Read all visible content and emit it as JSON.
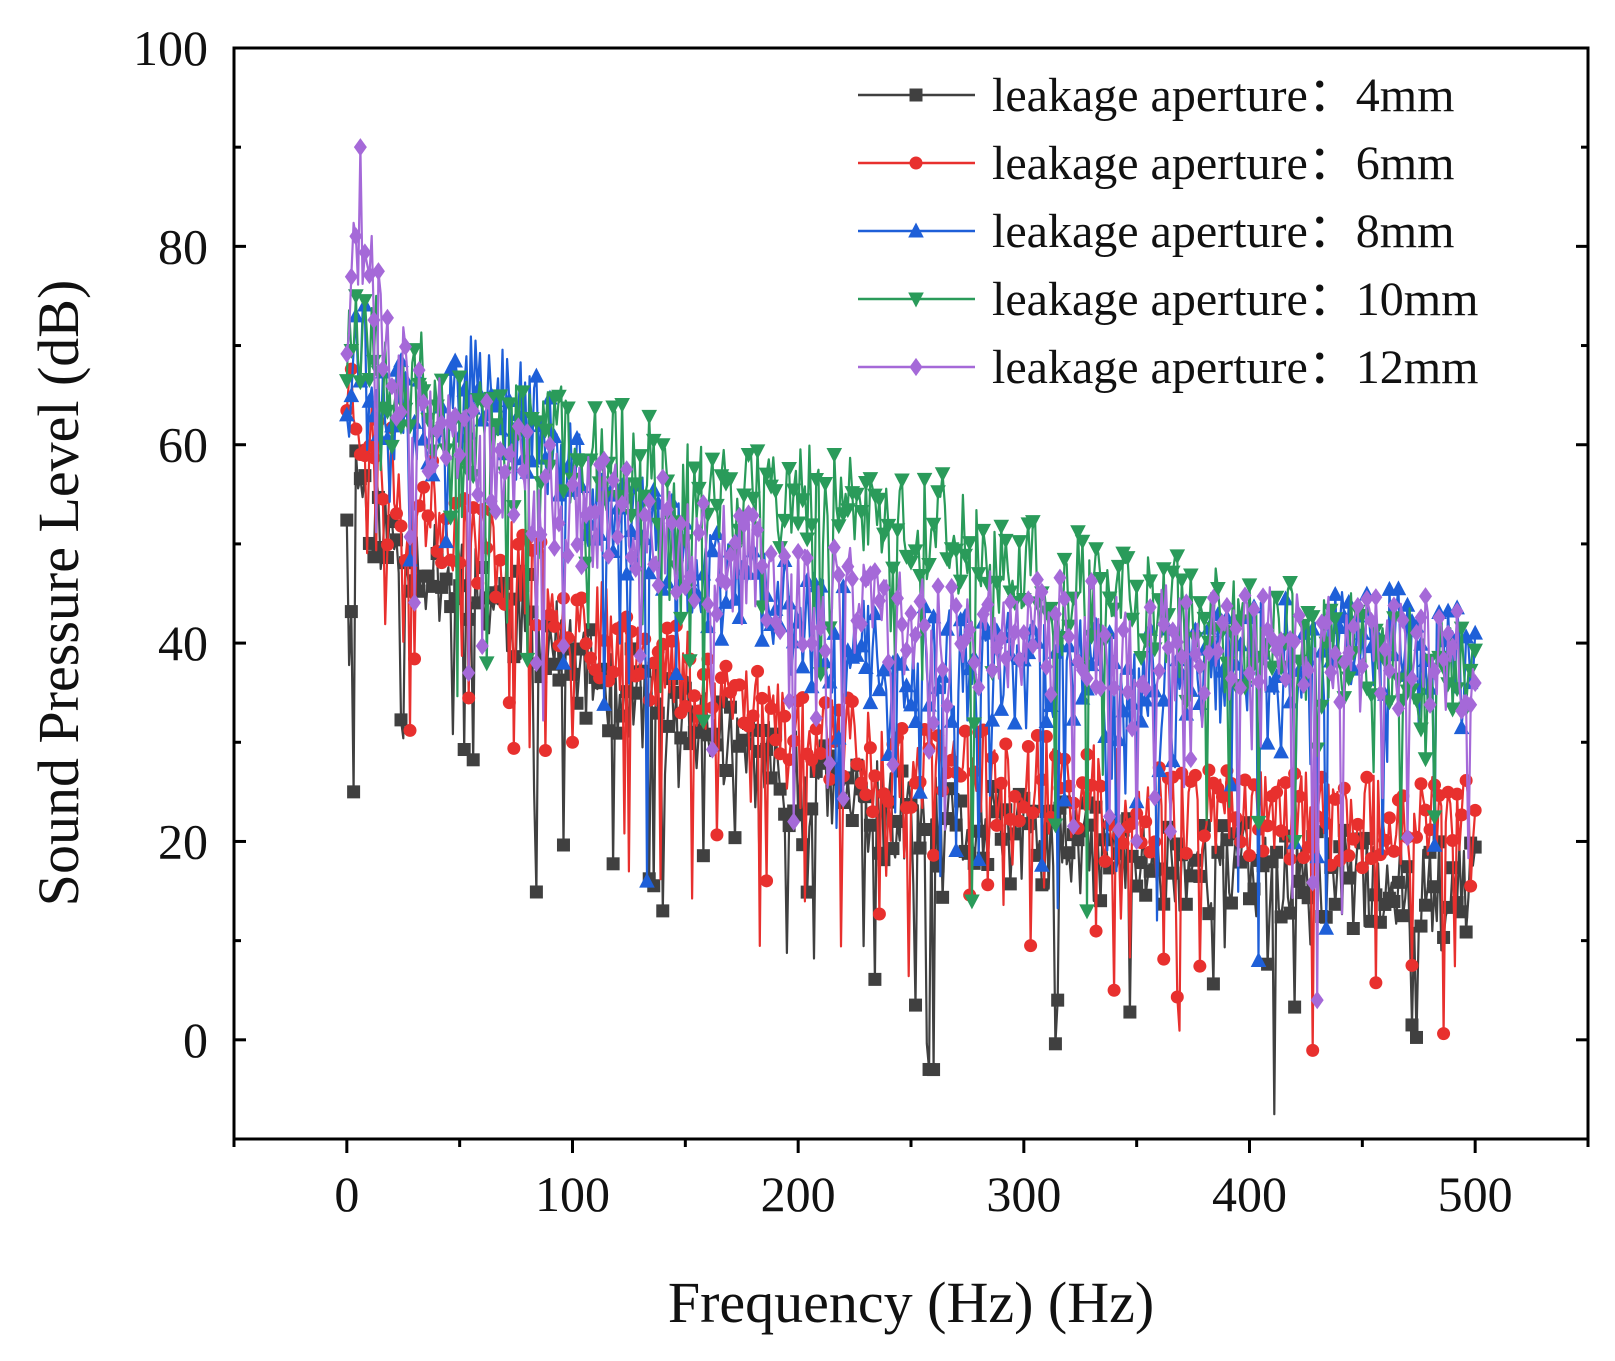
{
  "chart_data": {
    "type": "line",
    "title": "",
    "xlabel": "Frequency (Hz) (Hz)",
    "ylabel": "Sound Pressure Level (dB)",
    "xlim": [
      -50,
      550
    ],
    "ylim": [
      -10,
      100
    ],
    "xticks": [
      0,
      100,
      200,
      300,
      400,
      500
    ],
    "yticks": [
      0,
      20,
      40,
      60,
      80,
      100
    ],
    "grid": false,
    "legend_position": "top-right",
    "series": [
      {
        "name": "leakage aperture：4mm",
        "color": "#404040",
        "marker": "square",
        "trend_x": [
          1,
          5,
          10,
          20,
          40,
          60,
          80,
          100,
          130,
          160,
          200,
          250,
          300,
          350,
          400,
          450,
          500
        ],
        "trend_y": [
          55,
          57,
          54,
          50,
          47,
          45,
          42,
          38,
          34,
          31,
          26,
          22,
          20,
          18,
          17,
          16,
          15
        ],
        "seed": 11,
        "spread": 5,
        "dips": [
          [
            3,
            25
          ],
          [
            260,
            -3
          ],
          [
            252,
            3.5
          ],
          [
            347,
            2.8
          ],
          [
            472,
            1.5
          ],
          [
            420,
            3.3
          ],
          [
            140,
            13
          ],
          [
            315,
            4
          ]
        ]
      },
      {
        "name": "leakage aperture：6mm",
        "color": "#e8302e",
        "marker": "circle",
        "trend_x": [
          1,
          5,
          10,
          20,
          40,
          60,
          80,
          100,
          130,
          160,
          200,
          250,
          300,
          350,
          400,
          450,
          500
        ],
        "trend_y": [
          66,
          64,
          60,
          57,
          53,
          50,
          47,
          43,
          39,
          36,
          32,
          28,
          26,
          24,
          23,
          22,
          22
        ],
        "seed": 23,
        "spread": 5,
        "dips": [
          [
            72,
            34
          ],
          [
            100,
            30
          ],
          [
            340,
            5
          ],
          [
            472,
            7.5
          ],
          [
            303,
            9.5
          ],
          [
            233,
            23
          ]
        ]
      },
      {
        "name": "leakage aperture：8mm",
        "color": "#1e5fd8",
        "marker": "triangle-up",
        "trend_x": [
          1,
          5,
          10,
          20,
          40,
          60,
          80,
          100,
          130,
          160,
          200,
          250,
          300,
          350,
          400,
          450,
          500
        ],
        "trend_y": [
          66,
          72,
          68,
          63,
          62,
          66,
          63,
          56,
          51,
          47,
          42,
          38,
          37,
          36,
          38,
          40,
          40
        ],
        "seed": 37,
        "spread": 6,
        "dips": [
          [
            133,
            16
          ],
          [
            404,
            8
          ],
          [
            350,
            24
          ]
        ]
      },
      {
        "name": "leakage aperture：10mm",
        "color": "#2a9b5a",
        "marker": "triangle-down",
        "trend_x": [
          1,
          5,
          10,
          20,
          40,
          60,
          80,
          100,
          130,
          160,
          200,
          250,
          300,
          350,
          400,
          450,
          500
        ],
        "trend_y": [
          72,
          74,
          72,
          68,
          64,
          61,
          60,
          60,
          58,
          55,
          55,
          53,
          47,
          44,
          41,
          39,
          38
        ],
        "seed": 53,
        "spread": 6,
        "dips": [
          [
            277,
            14
          ],
          [
            328,
            13
          ],
          [
            62,
            38
          ]
        ]
      },
      {
        "name": "leakage aperture：12mm",
        "color": "#a569d8",
        "marker": "diamond",
        "trend_x": [
          1,
          5,
          10,
          20,
          40,
          60,
          80,
          100,
          130,
          160,
          200,
          250,
          300,
          350,
          400,
          450,
          500
        ],
        "trend_y": [
          72,
          82,
          76,
          68,
          62,
          59,
          56,
          54,
          52,
          49,
          45,
          42,
          41,
          40,
          40,
          39,
          39
        ],
        "seed": 71,
        "spread": 6,
        "dips": [
          [
            6,
            90
          ],
          [
            430,
            4
          ],
          [
            198,
            22
          ],
          [
            365,
            21
          ],
          [
            54,
            37
          ]
        ]
      }
    ]
  }
}
